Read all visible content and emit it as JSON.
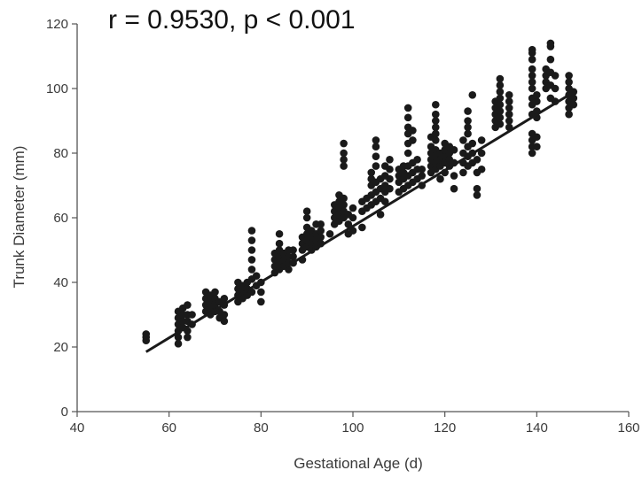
{
  "chart_data": {
    "type": "scatter",
    "title": "",
    "annotation": "r = 0.9530, p < 0.001",
    "xlabel": "Gestational Age (d)",
    "ylabel": "Trunk Diameter (mm)",
    "xlim": [
      40,
      160
    ],
    "ylim": [
      0,
      120
    ],
    "xticks": [
      40,
      60,
      80,
      100,
      120,
      140,
      160
    ],
    "yticks": [
      0,
      20,
      40,
      60,
      80,
      100,
      120
    ],
    "grid": false,
    "colors": {
      "points": "#1a1a1a",
      "line": "#1a1a1a",
      "axis": "#555555"
    },
    "regression_line": {
      "x": [
        55,
        147
      ],
      "y": [
        18.5,
        98
      ]
    },
    "points": [
      [
        55,
        22
      ],
      [
        55,
        24
      ],
      [
        55,
        23
      ],
      [
        62,
        21
      ],
      [
        62,
        23
      ],
      [
        62,
        25
      ],
      [
        62,
        27
      ],
      [
        62,
        29
      ],
      [
        62,
        31
      ],
      [
        63,
        26
      ],
      [
        63,
        28
      ],
      [
        63,
        30
      ],
      [
        63,
        32
      ],
      [
        64,
        23
      ],
      [
        64,
        25
      ],
      [
        64,
        28
      ],
      [
        64,
        30
      ],
      [
        64,
        33
      ],
      [
        65,
        27
      ],
      [
        65,
        30
      ],
      [
        68,
        31
      ],
      [
        68,
        33
      ],
      [
        68,
        35
      ],
      [
        68,
        37
      ],
      [
        69,
        30
      ],
      [
        69,
        32
      ],
      [
        69,
        34
      ],
      [
        69,
        36
      ],
      [
        70,
        31
      ],
      [
        70,
        33
      ],
      [
        70,
        35
      ],
      [
        70,
        37
      ],
      [
        71,
        29
      ],
      [
        71,
        31
      ],
      [
        71,
        34
      ],
      [
        72,
        28
      ],
      [
        72,
        30
      ],
      [
        72,
        33
      ],
      [
        72,
        35
      ],
      [
        75,
        34
      ],
      [
        75,
        36
      ],
      [
        75,
        38
      ],
      [
        75,
        40
      ],
      [
        76,
        35
      ],
      [
        76,
        37
      ],
      [
        76,
        39
      ],
      [
        77,
        36
      ],
      [
        77,
        38
      ],
      [
        77,
        40
      ],
      [
        78,
        37
      ],
      [
        78,
        41
      ],
      [
        78,
        44
      ],
      [
        78,
        47
      ],
      [
        78,
        50
      ],
      [
        78,
        53
      ],
      [
        78,
        56
      ],
      [
        79,
        39
      ],
      [
        79,
        42
      ],
      [
        80,
        34
      ],
      [
        80,
        37
      ],
      [
        80,
        40
      ],
      [
        83,
        43
      ],
      [
        83,
        45
      ],
      [
        83,
        47
      ],
      [
        83,
        49
      ],
      [
        84,
        44
      ],
      [
        84,
        46
      ],
      [
        84,
        48
      ],
      [
        84,
        50
      ],
      [
        84,
        52
      ],
      [
        84,
        55
      ],
      [
        85,
        45
      ],
      [
        85,
        47
      ],
      [
        85,
        49
      ],
      [
        86,
        44
      ],
      [
        86,
        46
      ],
      [
        86,
        48
      ],
      [
        86,
        50
      ],
      [
        87,
        46
      ],
      [
        87,
        48
      ],
      [
        87,
        50
      ],
      [
        89,
        47
      ],
      [
        89,
        50
      ],
      [
        89,
        52
      ],
      [
        89,
        54
      ],
      [
        90,
        51
      ],
      [
        90,
        53
      ],
      [
        90,
        55
      ],
      [
        90,
        57
      ],
      [
        90,
        60
      ],
      [
        90,
        62
      ],
      [
        91,
        50
      ],
      [
        91,
        52
      ],
      [
        91,
        54
      ],
      [
        91,
        56
      ],
      [
        92,
        51
      ],
      [
        92,
        53
      ],
      [
        92,
        55
      ],
      [
        92,
        58
      ],
      [
        93,
        52
      ],
      [
        93,
        54
      ],
      [
        93,
        56
      ],
      [
        93,
        58
      ],
      [
        95,
        55
      ],
      [
        96,
        58
      ],
      [
        96,
        60
      ],
      [
        96,
        62
      ],
      [
        96,
        64
      ],
      [
        97,
        59
      ],
      [
        97,
        61
      ],
      [
        97,
        63
      ],
      [
        97,
        65
      ],
      [
        97,
        67
      ],
      [
        98,
        60
      ],
      [
        98,
        62
      ],
      [
        98,
        64
      ],
      [
        98,
        66
      ],
      [
        98,
        76
      ],
      [
        98,
        78
      ],
      [
        98,
        80
      ],
      [
        98,
        83
      ],
      [
        99,
        55
      ],
      [
        99,
        58
      ],
      [
        99,
        61
      ],
      [
        100,
        56
      ],
      [
        100,
        60
      ],
      [
        100,
        63
      ],
      [
        102,
        57
      ],
      [
        102,
        62
      ],
      [
        102,
        65
      ],
      [
        103,
        63
      ],
      [
        103,
        66
      ],
      [
        104,
        64
      ],
      [
        104,
        67
      ],
      [
        104,
        70
      ],
      [
        104,
        72
      ],
      [
        104,
        74
      ],
      [
        105,
        65
      ],
      [
        105,
        68
      ],
      [
        105,
        71
      ],
      [
        105,
        76
      ],
      [
        105,
        79
      ],
      [
        105,
        82
      ],
      [
        105,
        84
      ],
      [
        106,
        66
      ],
      [
        106,
        69
      ],
      [
        106,
        72
      ],
      [
        106,
        61
      ],
      [
        107,
        68
      ],
      [
        107,
        70
      ],
      [
        107,
        73
      ],
      [
        107,
        76
      ],
      [
        107,
        65
      ],
      [
        108,
        69
      ],
      [
        108,
        72
      ],
      [
        108,
        75
      ],
      [
        108,
        78
      ],
      [
        110,
        68
      ],
      [
        110,
        71
      ],
      [
        110,
        73
      ],
      [
        110,
        75
      ],
      [
        111,
        69
      ],
      [
        111,
        72
      ],
      [
        111,
        74
      ],
      [
        111,
        76
      ],
      [
        112,
        70
      ],
      [
        112,
        73
      ],
      [
        112,
        76
      ],
      [
        112,
        80
      ],
      [
        112,
        83
      ],
      [
        112,
        86
      ],
      [
        112,
        88
      ],
      [
        112,
        91
      ],
      [
        112,
        94
      ],
      [
        113,
        71
      ],
      [
        113,
        74
      ],
      [
        113,
        77
      ],
      [
        113,
        84
      ],
      [
        113,
        87
      ],
      [
        114,
        72
      ],
      [
        114,
        75
      ],
      [
        114,
        78
      ],
      [
        115,
        73
      ],
      [
        115,
        75
      ],
      [
        115,
        70
      ],
      [
        117,
        74
      ],
      [
        117,
        76
      ],
      [
        117,
        78
      ],
      [
        117,
        80
      ],
      [
        117,
        82
      ],
      [
        117,
        85
      ],
      [
        118,
        75
      ],
      [
        118,
        77
      ],
      [
        118,
        79
      ],
      [
        118,
        81
      ],
      [
        118,
        84
      ],
      [
        118,
        86
      ],
      [
        118,
        88
      ],
      [
        118,
        90
      ],
      [
        118,
        92
      ],
      [
        118,
        95
      ],
      [
        119,
        76
      ],
      [
        119,
        78
      ],
      [
        119,
        80
      ],
      [
        119,
        72
      ],
      [
        120,
        77
      ],
      [
        120,
        79
      ],
      [
        120,
        81
      ],
      [
        120,
        83
      ],
      [
        120,
        74
      ],
      [
        121,
        76
      ],
      [
        121,
        78
      ],
      [
        121,
        80
      ],
      [
        121,
        82
      ],
      [
        122,
        69
      ],
      [
        122,
        73
      ],
      [
        122,
        77
      ],
      [
        122,
        81
      ],
      [
        124,
        74
      ],
      [
        124,
        77
      ],
      [
        124,
        80
      ],
      [
        124,
        84
      ],
      [
        125,
        76
      ],
      [
        125,
        79
      ],
      [
        125,
        82
      ],
      [
        125,
        86
      ],
      [
        125,
        88
      ],
      [
        125,
        90
      ],
      [
        125,
        93
      ],
      [
        126,
        77
      ],
      [
        126,
        80
      ],
      [
        126,
        83
      ],
      [
        126,
        98
      ],
      [
        127,
        67
      ],
      [
        127,
        69
      ],
      [
        127,
        74
      ],
      [
        127,
        78
      ],
      [
        128,
        75
      ],
      [
        128,
        80
      ],
      [
        128,
        84
      ],
      [
        131,
        88
      ],
      [
        131,
        90
      ],
      [
        131,
        92
      ],
      [
        131,
        94
      ],
      [
        131,
        96
      ],
      [
        132,
        89
      ],
      [
        132,
        91
      ],
      [
        132,
        93
      ],
      [
        132,
        95
      ],
      [
        132,
        97
      ],
      [
        132,
        99
      ],
      [
        132,
        101
      ],
      [
        132,
        103
      ],
      [
        134,
        88
      ],
      [
        134,
        90
      ],
      [
        134,
        92
      ],
      [
        134,
        94
      ],
      [
        134,
        96
      ],
      [
        134,
        98
      ],
      [
        139,
        80
      ],
      [
        139,
        82
      ],
      [
        139,
        84
      ],
      [
        139,
        86
      ],
      [
        139,
        92
      ],
      [
        139,
        95
      ],
      [
        139,
        97
      ],
      [
        139,
        100
      ],
      [
        139,
        102
      ],
      [
        139,
        104
      ],
      [
        139,
        106
      ],
      [
        139,
        109
      ],
      [
        139,
        111
      ],
      [
        139,
        112
      ],
      [
        140,
        82
      ],
      [
        140,
        85
      ],
      [
        140,
        91
      ],
      [
        140,
        93
      ],
      [
        140,
        96
      ],
      [
        140,
        98
      ],
      [
        142,
        100
      ],
      [
        142,
        102
      ],
      [
        142,
        104
      ],
      [
        142,
        106
      ],
      [
        143,
        97
      ],
      [
        143,
        101
      ],
      [
        143,
        105
      ],
      [
        143,
        109
      ],
      [
        143,
        113
      ],
      [
        143,
        114
      ],
      [
        144,
        96
      ],
      [
        144,
        100
      ],
      [
        144,
        104
      ],
      [
        147,
        92
      ],
      [
        147,
        94
      ],
      [
        147,
        96
      ],
      [
        147,
        98
      ],
      [
        147,
        100
      ],
      [
        147,
        102
      ],
      [
        147,
        104
      ],
      [
        148,
        95
      ],
      [
        148,
        97
      ],
      [
        148,
        99
      ]
    ]
  }
}
